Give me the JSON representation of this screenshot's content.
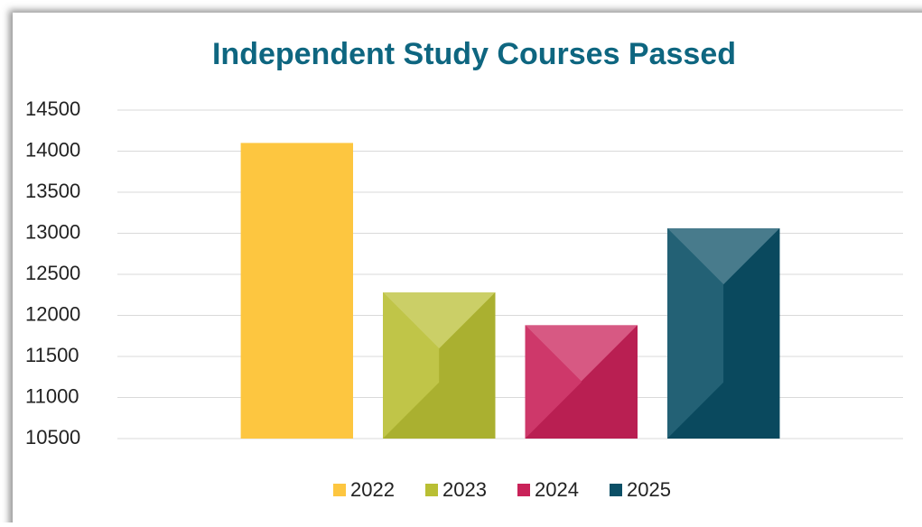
{
  "chart_data": {
    "type": "bar",
    "title": "Independent Study Courses Passed",
    "categories": [
      null
    ],
    "series": [
      {
        "name": "2022",
        "color": "#fdc640",
        "values": [
          14100
        ]
      },
      {
        "name": "2023",
        "color": "#b9bf34",
        "values": [
          12280
        ]
      },
      {
        "name": "2024",
        "color": "#c92259",
        "values": [
          11880
        ]
      },
      {
        "name": "2025",
        "color": "#0b4f66",
        "values": [
          13060
        ]
      }
    ],
    "ylim": [
      10500,
      14500
    ],
    "yticks": [
      10500,
      11000,
      11500,
      12000,
      12500,
      13000,
      13500,
      14000,
      14500
    ],
    "grid": true,
    "legend": "bottom"
  }
}
